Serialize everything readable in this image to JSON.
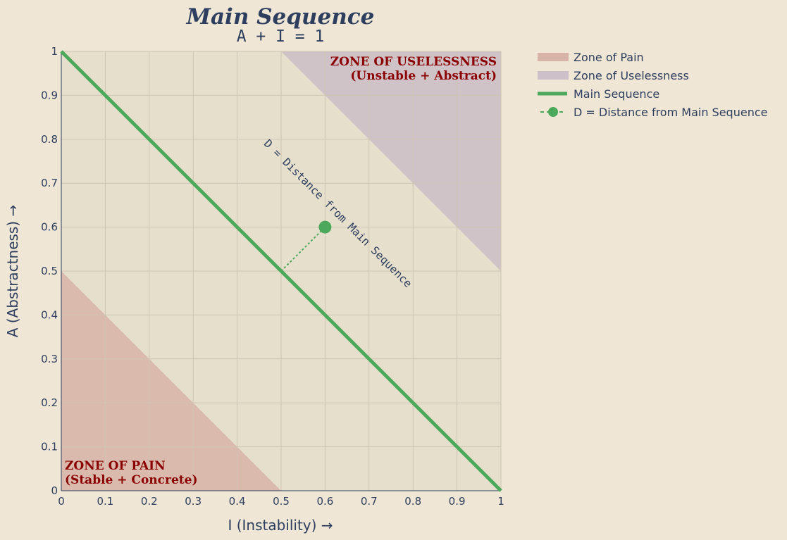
{
  "chart_data": {
    "type": "line",
    "title": "Main Sequence",
    "subtitle": "A + I = 1",
    "xlabel": "I (Instability) →",
    "ylabel": "A (Abstractness) →",
    "xlim": [
      0,
      1
    ],
    "ylim": [
      0,
      1
    ],
    "xticks": [
      "0",
      "0.1",
      "0.2",
      "0.3",
      "0.4",
      "0.5",
      "0.6",
      "0.7",
      "0.8",
      "0.9",
      "1"
    ],
    "yticks": [
      "0",
      "0.1",
      "0.2",
      "0.3",
      "0.4",
      "0.5",
      "0.6",
      "0.7",
      "0.8",
      "0.9",
      "1"
    ],
    "grid": true,
    "legend_position": "outside-right",
    "zones": [
      {
        "name": "Zone of Pain",
        "polygon": [
          [
            0,
            0
          ],
          [
            0.5,
            0
          ],
          [
            0,
            0.5
          ]
        ],
        "color": "#d8b4a8",
        "label_lines": [
          "ZONE OF PAIN",
          "(Stable + Concrete)"
        ]
      },
      {
        "name": "Zone of Uselessness",
        "polygon": [
          [
            0.5,
            1
          ],
          [
            1,
            1
          ],
          [
            1,
            0.5
          ]
        ],
        "color": "#cdc0c8",
        "label_lines": [
          "ZONE OF USELESSNESS",
          "(Unstable + Abstract)"
        ]
      }
    ],
    "series": [
      {
        "name": "Main Sequence",
        "x": [
          0,
          1
        ],
        "y": [
          1,
          0
        ],
        "color": "#4ca85a"
      }
    ],
    "point": {
      "name": "D = Distance from Main Sequence",
      "x": 0.6,
      "y": 0.6,
      "foot": [
        0.5,
        0.5
      ],
      "color": "#4ca85a"
    },
    "annotation": "D = Distance from Main Sequence"
  },
  "colors": {
    "background": "#efe6d6",
    "plot_bg": "#e6dfcc",
    "grid": "#cfc4b2",
    "text": "#2d3e5e",
    "zone_text": "#8b0000"
  }
}
